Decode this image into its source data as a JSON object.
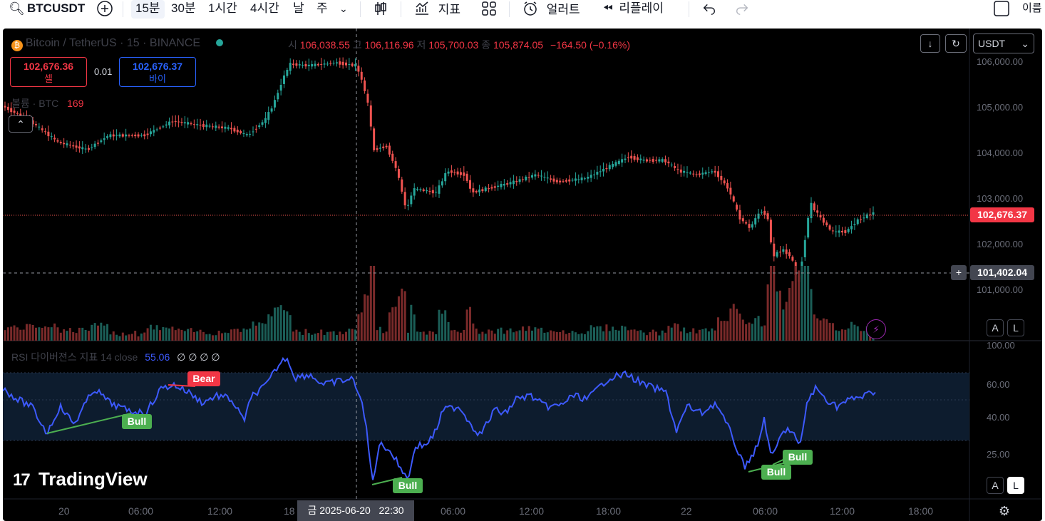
{
  "toolbar": {
    "symbol": "BTCUSDT",
    "intervals": [
      "15분",
      "30분",
      "1시간",
      "4시간",
      "날",
      "주"
    ],
    "indicators_label": "지표",
    "alert_label": "얼러트",
    "replay_label": "리플레이",
    "name_label": "이름"
  },
  "legend": {
    "title": "Bitcoin / TetherUS · 15 · BINANCE",
    "open_label": "시",
    "open": "106,038.55",
    "high_label": "고",
    "high": "106,116.96",
    "low_label": "저",
    "low": "105,700.03",
    "close_label": "종",
    "close": "105,874.05",
    "change": "−164.50 (−0.16%)",
    "sell_price": "102,676.36",
    "sell_label": "셀",
    "spread": "0.01",
    "buy_price": "102,676.37",
    "buy_label": "바이",
    "volume_label": "볼륨 · BTC",
    "volume_value": "169"
  },
  "rsi": {
    "label": "RSI 다이버젼스 지표 14 close",
    "value": "55.06",
    "extras": "∅ ∅ ∅ ∅",
    "bear_label": "Bear",
    "bull_label": "Bull",
    "axis": [
      "100.00",
      "60.00",
      "40.00",
      "25.00"
    ]
  },
  "price_axis": [
    "106,000.00",
    "105,000.00",
    "104,000.00",
    "103,000.00",
    "102,000.00",
    "101,000.00"
  ],
  "currency": "USDT",
  "last_price": "102,676.37",
  "crosshair_price": "101,402.04",
  "crosshair_time": "금 2025-06-20   22:30",
  "time_axis": [
    "20",
    "06:00",
    "12:00",
    "18",
    "06:00",
    "12:00",
    "18:00",
    "22",
    "06:00",
    "12:00",
    "18:00"
  ],
  "logo_text": "TradingView",
  "scale_buttons": [
    "A",
    "L"
  ],
  "colors": {
    "up": "#26a69a",
    "down": "#ef5350",
    "rsi": "#3d5afe",
    "bull": "#4caf50",
    "bear": "#f23645"
  }
}
